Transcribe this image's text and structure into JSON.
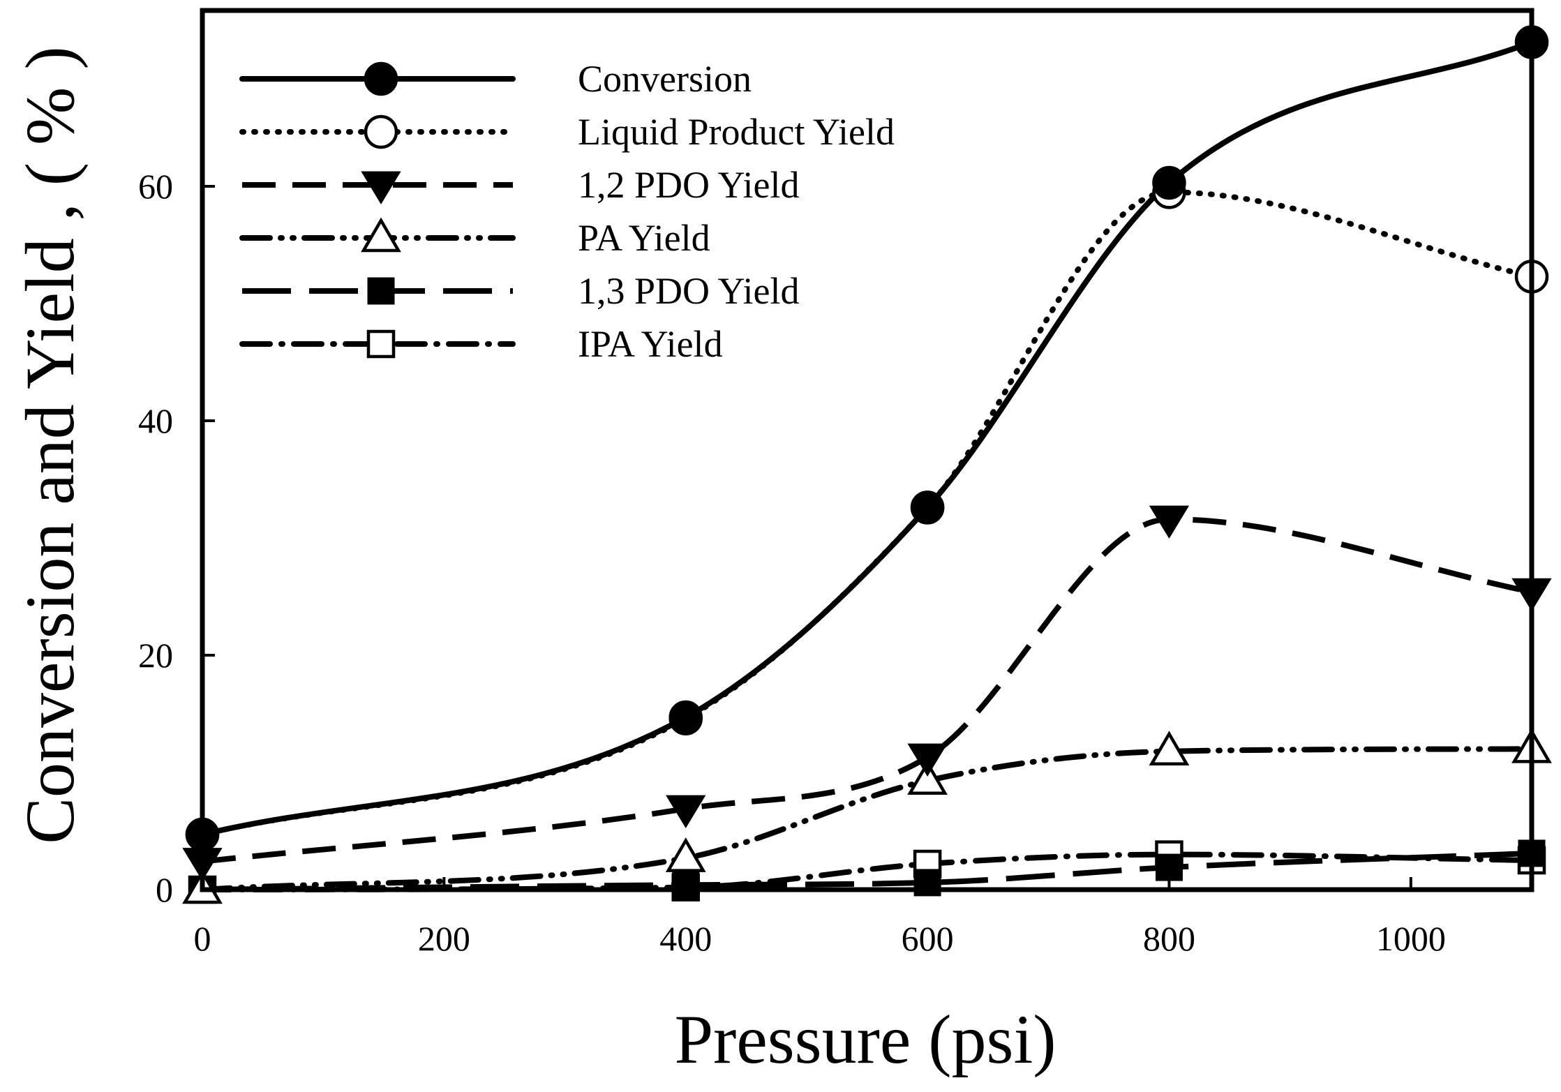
{
  "chart_data": {
    "type": "line",
    "title": "",
    "xlabel": "Pressure  (psi)",
    "ylabel": "Conversion and Yield , ( % )",
    "xlim": [
      0,
      1100
    ],
    "ylim": [
      0,
      75
    ],
    "xticks": [
      0,
      200,
      400,
      600,
      800,
      1000
    ],
    "yticks": [
      0,
      20,
      40,
      60
    ],
    "grid": false,
    "legend_position": "top-left",
    "x": [
      0,
      400,
      600,
      800,
      1100
    ],
    "series": [
      {
        "name": "Conversion",
        "values": [
          4.7,
          14.7,
          32.6,
          60.3,
          72.3
        ],
        "line": "solid",
        "marker": "filled-circle"
      },
      {
        "name": "Liquid Product Yield",
        "values": [
          4.7,
          14.6,
          32.6,
          59.5,
          52.3
        ],
        "line": "dotted",
        "marker": "open-circle"
      },
      {
        "name": "1,2 PDO  Yield",
        "values": [
          2.4,
          6.9,
          11.3,
          31.6,
          25.4
        ],
        "line": "dashed",
        "marker": "filled-triangle-down"
      },
      {
        "name": "PA Yield",
        "values": [
          0.0,
          2.7,
          9.3,
          11.8,
          12.0
        ],
        "line": "dash-dot-dot",
        "marker": "open-triangle-up"
      },
      {
        "name": "1,3 PDO Yield",
        "values": [
          0.0,
          0.4,
          0.6,
          1.9,
          3.1
        ],
        "line": "long-dash",
        "marker": "filled-square"
      },
      {
        "name": "IPA  Yield",
        "values": [
          0.0,
          0.2,
          2.2,
          3.0,
          2.5
        ],
        "line": "dash-dot",
        "marker": "open-square"
      }
    ]
  }
}
